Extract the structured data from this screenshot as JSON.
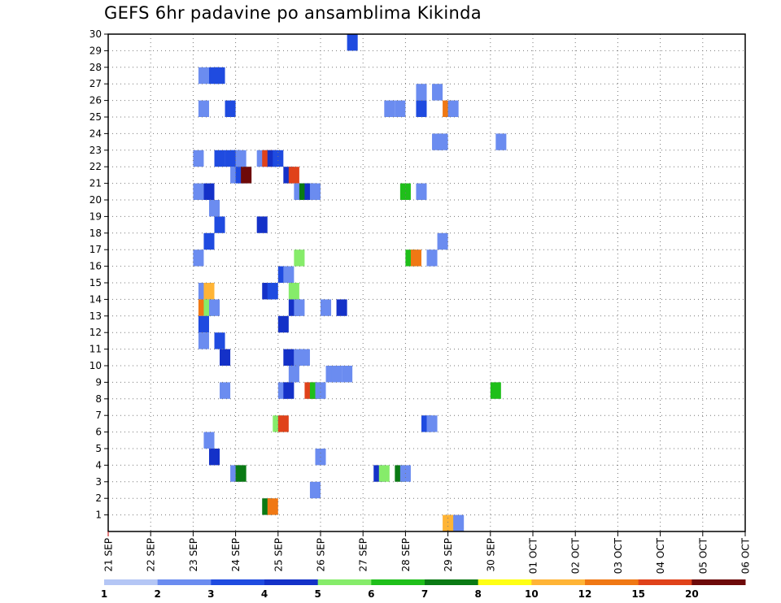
{
  "chart_data": {
    "type": "heatmap",
    "title": "GEFS 6hr padavine po ansamblima Kikinda",
    "x_tick_labels": [
      "21 SEP",
      "22 SEP",
      "23 SEP",
      "24 SEP",
      "25 SEP",
      "26 SEP",
      "27 SEP",
      "28 SEP",
      "29 SEP",
      "30 SEP",
      "01 OCT",
      "02 OCT",
      "03 OCT",
      "04 OCT",
      "05 OCT",
      "06 OCT"
    ],
    "y_tick_labels": [
      "1",
      "2",
      "3",
      "4",
      "5",
      "6",
      "7",
      "8",
      "9",
      "10",
      "11",
      "12",
      "13",
      "14",
      "15",
      "16",
      "17",
      "18",
      "19",
      "20",
      "21",
      "22",
      "23",
      "24",
      "25",
      "26",
      "27",
      "28",
      "29",
      "30"
    ],
    "ylim": [
      0,
      30
    ],
    "x_step_per_day": 4,
    "grid": true,
    "legend": {
      "position": "bottom",
      "labels": [
        "1",
        "2",
        "3",
        "4",
        "5",
        "6",
        "7",
        "8",
        "10",
        "12",
        "15",
        "20"
      ],
      "colors": [
        "#b4c6f5",
        "#6b8cf0",
        "#1f4be0",
        "#1431c8",
        "#86ec6a",
        "#1fbf1a",
        "#0a7a14",
        "#ffff14",
        "#ffb436",
        "#f07814",
        "#e0421a",
        "#6e0a0a"
      ]
    },
    "cells": [
      {
        "x": 22.5,
        "y": 30,
        "c": 2
      },
      {
        "x": 8.5,
        "y": 28,
        "c": 1
      },
      {
        "x": 9.5,
        "y": 28,
        "c": 2
      },
      {
        "x": 10,
        "y": 28,
        "c": 2
      },
      {
        "x": 29,
        "y": 27,
        "c": 1
      },
      {
        "x": 30.5,
        "y": 27,
        "c": 1
      },
      {
        "x": 8.5,
        "y": 26,
        "c": 1
      },
      {
        "x": 11,
        "y": 26,
        "c": 2
      },
      {
        "x": 26,
        "y": 26,
        "c": 1
      },
      {
        "x": 27,
        "y": 26,
        "c": 1
      },
      {
        "x": 29,
        "y": 26,
        "c": 2
      },
      {
        "x": 31.5,
        "y": 26,
        "c": 9
      },
      {
        "x": 32,
        "y": 26,
        "c": 1
      },
      {
        "x": 30.5,
        "y": 24,
        "c": 1
      },
      {
        "x": 31,
        "y": 24,
        "c": 1
      },
      {
        "x": 36.5,
        "y": 24,
        "c": 1
      },
      {
        "x": 8,
        "y": 23,
        "c": 1
      },
      {
        "x": 10,
        "y": 23,
        "c": 2
      },
      {
        "x": 11,
        "y": 23,
        "c": 2
      },
      {
        "x": 11.5,
        "y": 23,
        "c": 2
      },
      {
        "x": 12,
        "y": 23,
        "c": 1
      },
      {
        "x": 14,
        "y": 23,
        "c": 1
      },
      {
        "x": 14.5,
        "y": 23,
        "c": 10
      },
      {
        "x": 15,
        "y": 23,
        "c": 3
      },
      {
        "x": 15.5,
        "y": 23,
        "c": 2
      },
      {
        "x": 11.5,
        "y": 22,
        "c": 1
      },
      {
        "x": 12,
        "y": 22,
        "c": 2
      },
      {
        "x": 12.5,
        "y": 22,
        "c": 11
      },
      {
        "x": 16.5,
        "y": 22,
        "c": 3
      },
      {
        "x": 17,
        "y": 22,
        "c": 10
      },
      {
        "x": 8,
        "y": 21,
        "c": 1
      },
      {
        "x": 9,
        "y": 21,
        "c": 3
      },
      {
        "x": 17.5,
        "y": 21,
        "c": 1
      },
      {
        "x": 18,
        "y": 21,
        "c": 6
      },
      {
        "x": 18.5,
        "y": 21,
        "c": 3
      },
      {
        "x": 19,
        "y": 21,
        "c": 1
      },
      {
        "x": 27.5,
        "y": 21,
        "c": 5
      },
      {
        "x": 29,
        "y": 21,
        "c": 1
      },
      {
        "x": 9.5,
        "y": 20,
        "c": 1
      },
      {
        "x": 10,
        "y": 19,
        "c": 2
      },
      {
        "x": 14,
        "y": 19,
        "c": 3
      },
      {
        "x": 9,
        "y": 18,
        "c": 2
      },
      {
        "x": 31,
        "y": 18,
        "c": 1
      },
      {
        "x": 8,
        "y": 17,
        "c": 1
      },
      {
        "x": 17.5,
        "y": 17,
        "c": 4
      },
      {
        "x": 28,
        "y": 17,
        "c": 5
      },
      {
        "x": 28.5,
        "y": 17,
        "c": 9
      },
      {
        "x": 30,
        "y": 17,
        "c": 1
      },
      {
        "x": 16,
        "y": 16,
        "c": 2
      },
      {
        "x": 16.5,
        "y": 16,
        "c": 1
      },
      {
        "x": 8.5,
        "y": 15,
        "c": 1
      },
      {
        "x": 9,
        "y": 15,
        "c": 8
      },
      {
        "x": 14.5,
        "y": 15,
        "c": 3
      },
      {
        "x": 15,
        "y": 15,
        "c": 2
      },
      {
        "x": 17,
        "y": 15,
        "c": 4
      },
      {
        "x": 8.5,
        "y": 14,
        "c": 9
      },
      {
        "x": 9,
        "y": 14,
        "c": 4
      },
      {
        "x": 9.5,
        "y": 14,
        "c": 1
      },
      {
        "x": 17,
        "y": 14,
        "c": 3
      },
      {
        "x": 17.5,
        "y": 14,
        "c": 1
      },
      {
        "x": 20,
        "y": 14,
        "c": 1
      },
      {
        "x": 21.5,
        "y": 14,
        "c": 3
      },
      {
        "x": 8.5,
        "y": 13,
        "c": 2
      },
      {
        "x": 16,
        "y": 13,
        "c": 3
      },
      {
        "x": 8.5,
        "y": 12,
        "c": 1
      },
      {
        "x": 10,
        "y": 12,
        "c": 2
      },
      {
        "x": 10.5,
        "y": 11,
        "c": 3
      },
      {
        "x": 16.5,
        "y": 11,
        "c": 3
      },
      {
        "x": 17.5,
        "y": 11,
        "c": 1
      },
      {
        "x": 18,
        "y": 11,
        "c": 1
      },
      {
        "x": 17,
        "y": 10,
        "c": 1
      },
      {
        "x": 20.5,
        "y": 10,
        "c": 1
      },
      {
        "x": 21,
        "y": 10,
        "c": 1
      },
      {
        "x": 22,
        "y": 10,
        "c": 1
      },
      {
        "x": 10.5,
        "y": 9,
        "c": 1
      },
      {
        "x": 16,
        "y": 9,
        "c": 1
      },
      {
        "x": 16.5,
        "y": 9,
        "c": 3
      },
      {
        "x": 18.5,
        "y": 9,
        "c": 10
      },
      {
        "x": 19,
        "y": 9,
        "c": 5
      },
      {
        "x": 19.5,
        "y": 9,
        "c": 1
      },
      {
        "x": 36,
        "y": 9,
        "c": 5
      },
      {
        "x": 15.5,
        "y": 7,
        "c": 4
      },
      {
        "x": 16,
        "y": 7,
        "c": 10
      },
      {
        "x": 29.5,
        "y": 7,
        "c": 2
      },
      {
        "x": 30,
        "y": 7,
        "c": 1
      },
      {
        "x": 9,
        "y": 6,
        "c": 1
      },
      {
        "x": 9.5,
        "y": 5,
        "c": 3
      },
      {
        "x": 19.5,
        "y": 5,
        "c": 1
      },
      {
        "x": 11.5,
        "y": 4,
        "c": 1
      },
      {
        "x": 12,
        "y": 4,
        "c": 6
      },
      {
        "x": 25,
        "y": 4,
        "c": 3
      },
      {
        "x": 25.5,
        "y": 4,
        "c": 4
      },
      {
        "x": 27,
        "y": 4,
        "c": 6
      },
      {
        "x": 27.5,
        "y": 4,
        "c": 1
      },
      {
        "x": 19,
        "y": 3,
        "c": 1
      },
      {
        "x": 14.5,
        "y": 2,
        "c": 6
      },
      {
        "x": 15,
        "y": 2,
        "c": 9
      },
      {
        "x": 31.5,
        "y": 1,
        "c": 8
      },
      {
        "x": 32,
        "y": 1,
        "c": 8
      },
      {
        "x": 32.5,
        "y": 1,
        "c": 1
      }
    ]
  }
}
